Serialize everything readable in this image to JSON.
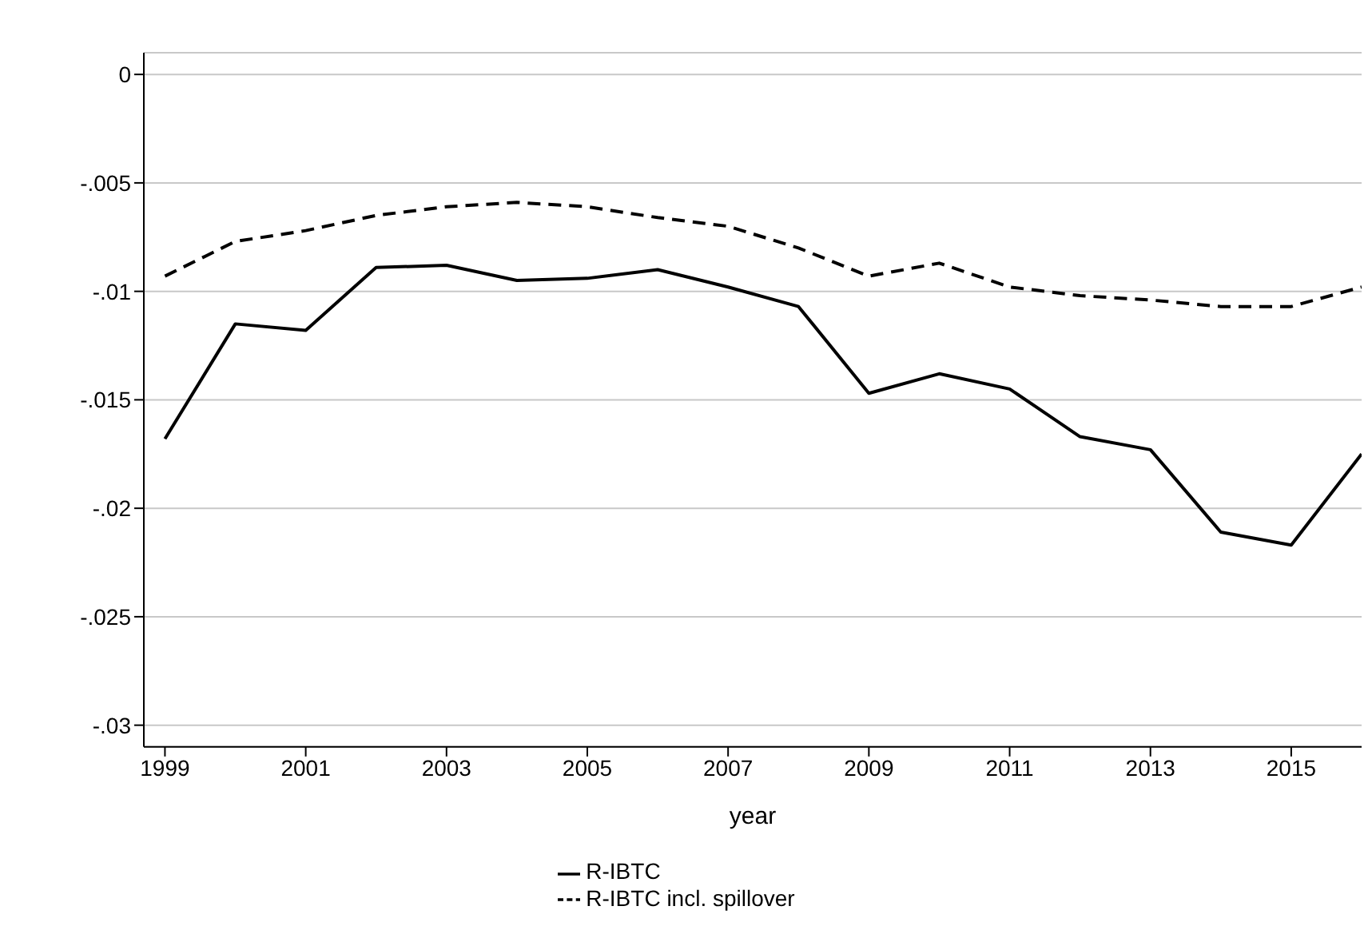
{
  "chart_data": {
    "type": "line",
    "xlabel": "year",
    "x": [
      1999,
      2000,
      2001,
      2002,
      2003,
      2004,
      2005,
      2006,
      2007,
      2008,
      2009,
      2010,
      2011,
      2012,
      2013,
      2014,
      2015,
      2016
    ],
    "series": [
      {
        "name": "R-IBTC",
        "color": "#000000",
        "line_style": "solid",
        "values": [
          -0.0168,
          -0.0115,
          -0.0118,
          -0.0089,
          -0.0088,
          -0.0095,
          -0.0094,
          -0.009,
          -0.0098,
          -0.0107,
          -0.0147,
          -0.0138,
          -0.0145,
          -0.0167,
          -0.0173,
          -0.0211,
          -0.0217,
          -0.0175
        ]
      },
      {
        "name": "R-IBTC incl. spillover",
        "color": "#000000",
        "line_style": "dashed",
        "values": [
          -0.0093,
          -0.0077,
          -0.0072,
          -0.0065,
          -0.0061,
          -0.0059,
          -0.0061,
          -0.0066,
          -0.007,
          -0.008,
          -0.0093,
          -0.0087,
          -0.0098,
          -0.0102,
          -0.0104,
          -0.0107,
          -0.0107,
          -0.0098
        ]
      }
    ],
    "xlim": [
      1998.7,
      2016
    ],
    "xticks": [
      1999,
      2001,
      2003,
      2005,
      2007,
      2009,
      2011,
      2013,
      2015
    ],
    "ylim": [
      -0.031,
      0.001
    ],
    "yticks": [
      0,
      {
        "value": -0.005,
        "label": "-.005"
      },
      {
        "value": -0.01,
        "label": "-.01"
      },
      {
        "value": -0.015,
        "label": "-.015"
      },
      {
        "value": -0.02,
        "label": "-.02"
      },
      {
        "value": -0.025,
        "label": "-.025"
      },
      {
        "value": -0.03,
        "label": "-.03"
      }
    ],
    "grid": "y",
    "legend": "bottom",
    "marker": "none"
  }
}
